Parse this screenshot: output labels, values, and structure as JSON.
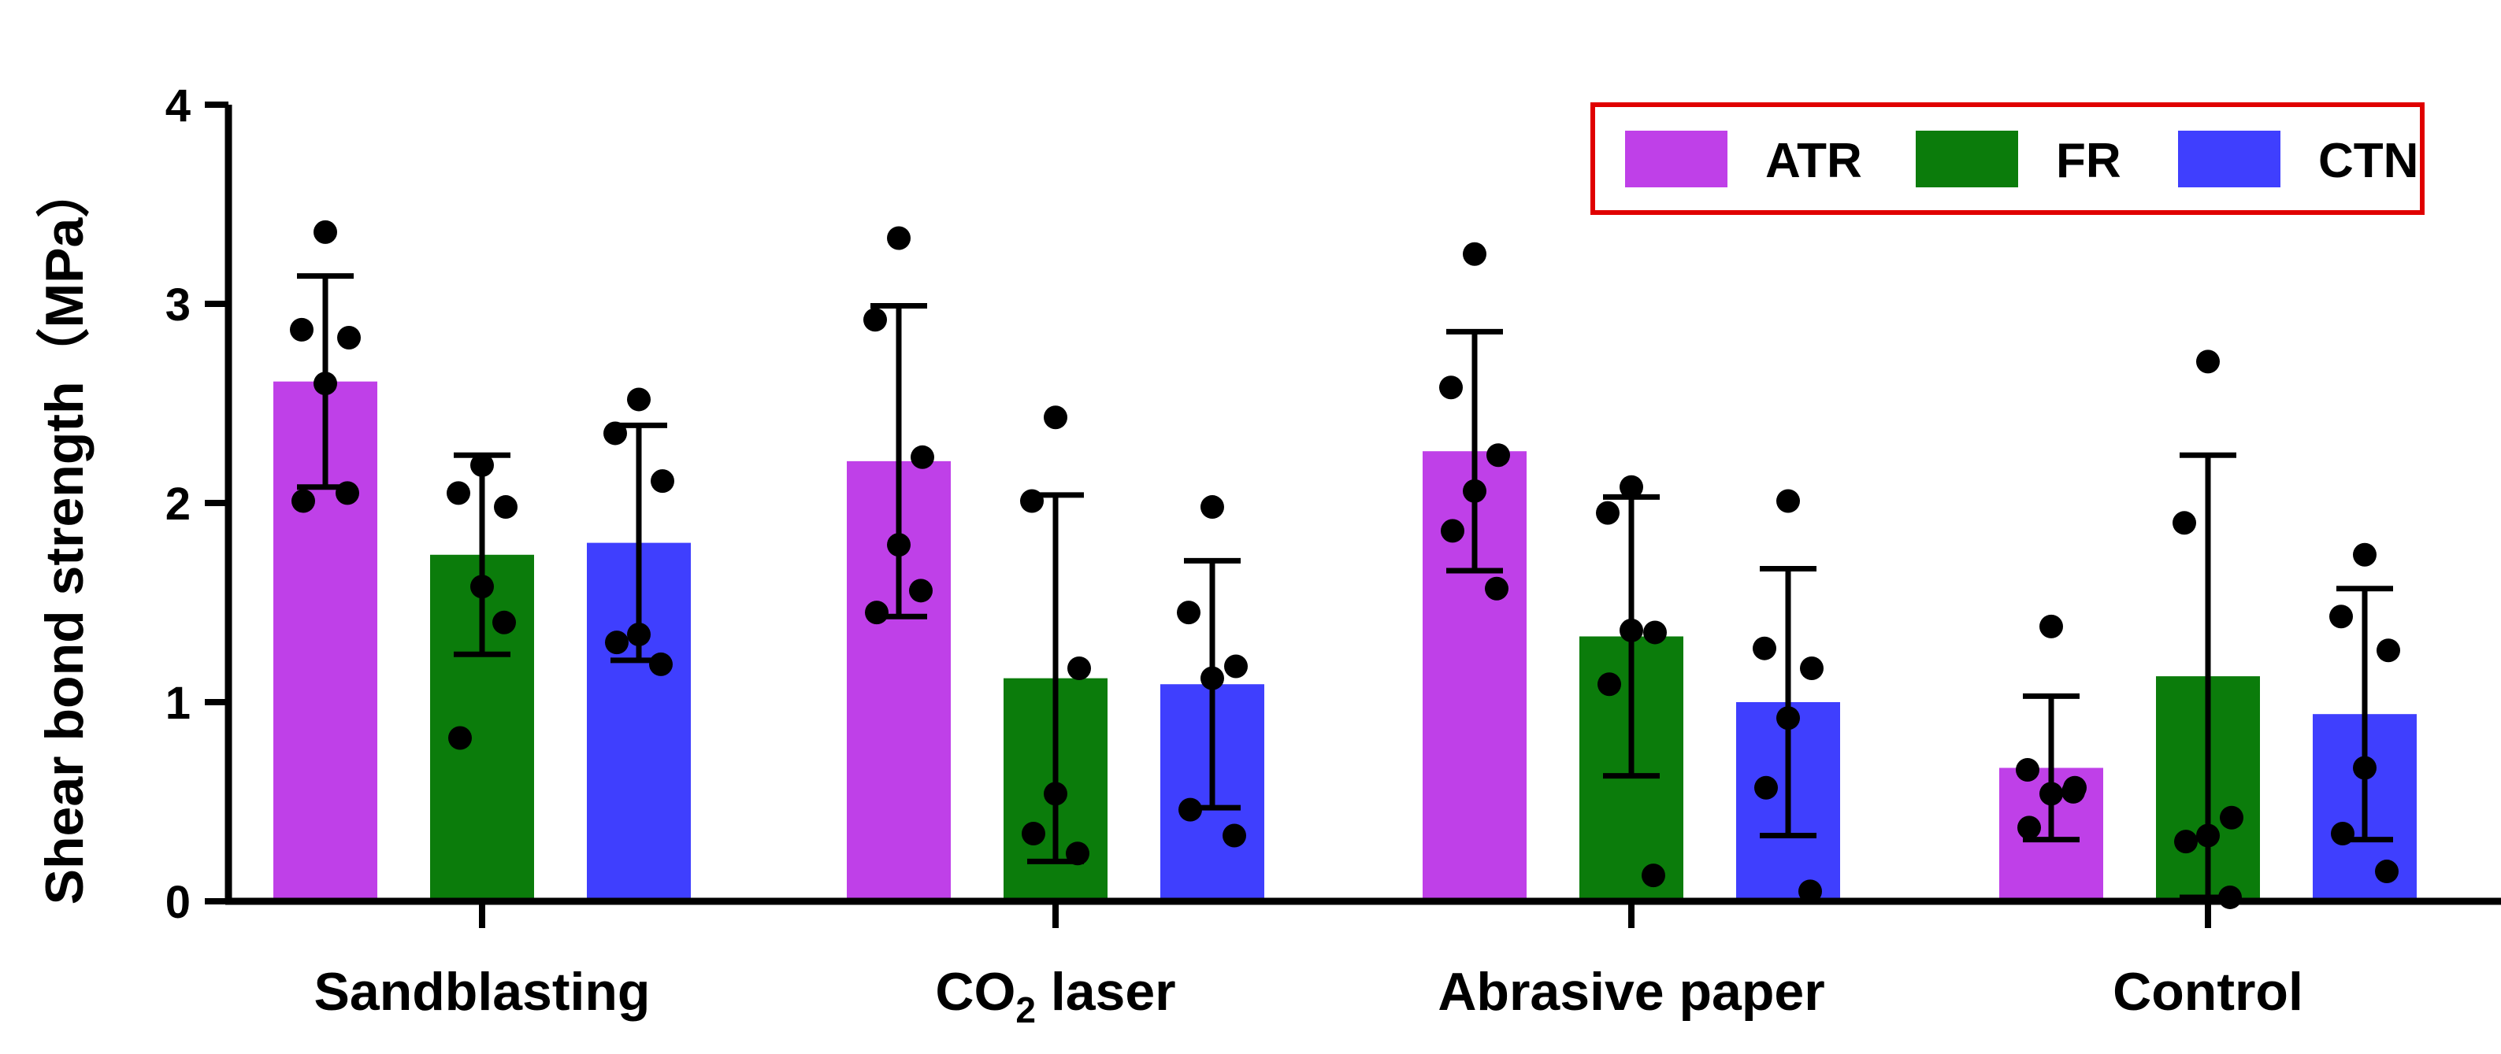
{
  "chart_data": {
    "type": "bar",
    "title": "",
    "xlabel": "",
    "ylabel": "Shear bond strength（MPa）",
    "ylim": [
      0,
      4
    ],
    "yticks": [
      "0",
      "1",
      "2",
      "3",
      "4"
    ],
    "categories": [
      {
        "label": "Sandblasting",
        "base": "",
        "sub": ""
      },
      {
        "label": "",
        "base": "CO",
        "sub": "2",
        "rest": " laser"
      },
      {
        "label": "Abrasive paper",
        "base": "",
        "sub": ""
      },
      {
        "label": "Control",
        "base": "",
        "sub": ""
      }
    ],
    "legend_position": "top-right",
    "series": [
      {
        "name": "ATR",
        "color": "#bf40e8",
        "values": [
          2.61,
          2.21,
          2.26,
          0.67
        ],
        "errors": [
          0.53,
          0.78,
          0.6,
          0.36
        ],
        "points": [
          [
            3.36,
            2.87,
            2.83,
            2.6,
            2.01,
            2.05
          ],
          [
            3.33,
            2.92,
            2.23,
            1.79,
            1.45,
            1.56
          ],
          [
            3.25,
            2.58,
            2.24,
            2.06,
            1.86,
            1.57
          ],
          [
            1.38,
            0.66,
            0.57,
            0.54,
            0.37,
            0.55
          ]
        ]
      },
      {
        "name": "FR",
        "color": "#0b7c0b",
        "values": [
          1.74,
          1.12,
          1.33,
          1.13
        ],
        "errors": [
          0.5,
          0.92,
          0.7,
          1.11
        ],
        "points": [
          [
            2.19,
            2.05,
            1.98,
            1.58,
            0.82,
            1.4
          ],
          [
            2.43,
            2.01,
            1.17,
            0.54,
            0.34,
            0.24
          ],
          [
            2.08,
            1.95,
            1.35,
            1.36,
            1.09,
            0.13
          ],
          [
            2.71,
            1.9,
            0.42,
            0.33,
            0.3,
            0.02
          ]
        ]
      },
      {
        "name": "CTN",
        "color": "#3f3ffe",
        "values": [
          1.8,
          1.09,
          1.0,
          0.94
        ],
        "errors": [
          0.59,
          0.62,
          0.67,
          0.63
        ],
        "points": [
          [
            2.52,
            2.35,
            2.11,
            1.34,
            1.3,
            1.19
          ],
          [
            1.98,
            1.45,
            1.18,
            1.12,
            0.46,
            0.33
          ],
          [
            2.01,
            1.27,
            1.17,
            0.92,
            0.57,
            0.05
          ],
          [
            1.74,
            1.43,
            1.26,
            0.67,
            0.34,
            0.15
          ]
        ]
      }
    ]
  }
}
